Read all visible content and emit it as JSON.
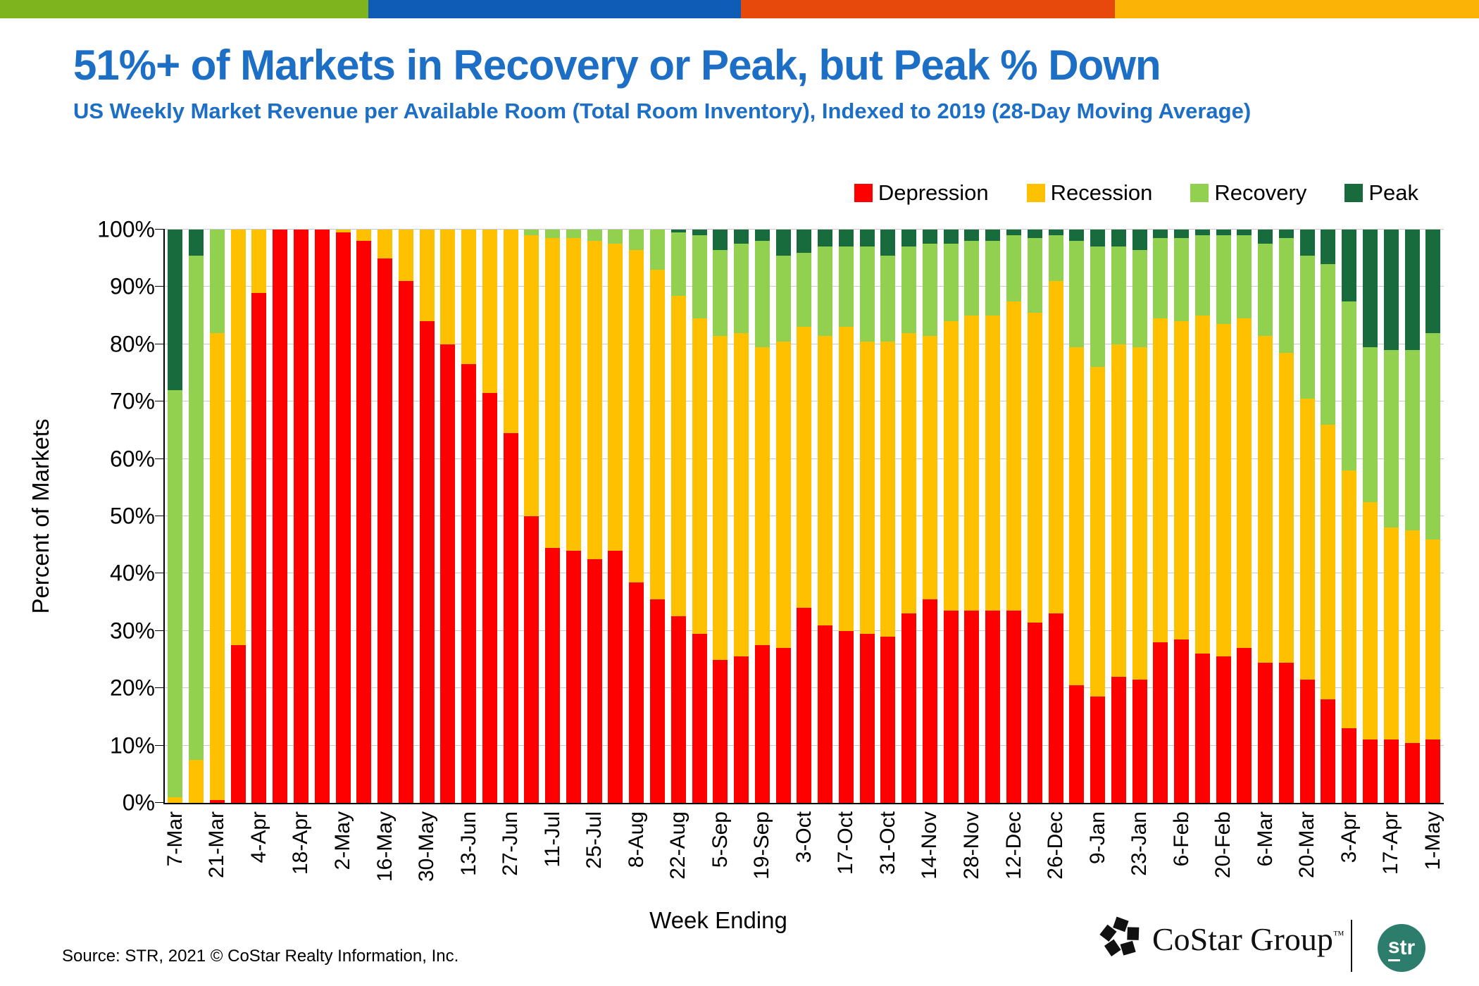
{
  "stripe": {
    "colors": [
      "#7EB41E",
      "#0E5CB5",
      "#E6490B",
      "#FBB305"
    ],
    "widths_pct": [
      24.9,
      25.2,
      25.3,
      24.6
    ]
  },
  "header": {
    "title": "51%+ of Markets in Recovery or Peak, but Peak % Down",
    "subtitle": "US Weekly Market Revenue per Available Room (Total Room Inventory), Indexed to 2019 (28-Day Moving Average)",
    "accent_color": "#1D6EC5"
  },
  "legend": [
    {
      "label": "Depression",
      "color": "#FF0000"
    },
    {
      "label": "Recession",
      "color": "#FFC000"
    },
    {
      "label": "Recovery",
      "color": "#92D050"
    },
    {
      "label": "Peak",
      "color": "#186B3C"
    }
  ],
  "chart_data": {
    "type": "bar",
    "stacked": true,
    "title": "51%+ of Markets in Recovery or Peak, but Peak % Down",
    "xlabel": "Week Ending",
    "ylabel": "Percent of Markets",
    "ylim": [
      0,
      100
    ],
    "yticks": [
      "0%",
      "10%",
      "20%",
      "30%",
      "40%",
      "50%",
      "60%",
      "70%",
      "80%",
      "90%",
      "100%"
    ],
    "grid": true,
    "legend_position": "top-right",
    "label_every": 2,
    "categories": [
      "7-Mar",
      "14-Mar",
      "21-Mar",
      "28-Mar",
      "4-Apr",
      "11-Apr",
      "18-Apr",
      "25-Apr",
      "2-May",
      "9-May",
      "16-May",
      "23-May",
      "30-May",
      "6-Jun",
      "13-Jun",
      "20-Jun",
      "27-Jun",
      "4-Jul",
      "11-Jul",
      "18-Jul",
      "25-Jul",
      "1-Aug",
      "8-Aug",
      "15-Aug",
      "22-Aug",
      "29-Aug",
      "5-Sep",
      "12-Sep",
      "19-Sep",
      "26-Sep",
      "3-Oct",
      "10-Oct",
      "17-Oct",
      "24-Oct",
      "31-Oct",
      "7-Nov",
      "14-Nov",
      "21-Nov",
      "28-Nov",
      "5-Dec",
      "12-Dec",
      "19-Dec",
      "26-Dec",
      "2-Jan",
      "9-Jan",
      "16-Jan",
      "23-Jan",
      "30-Jan",
      "6-Feb",
      "13-Feb",
      "20-Feb",
      "27-Feb",
      "6-Mar",
      "13-Mar",
      "20-Mar",
      "27-Mar",
      "3-Apr",
      "10-Apr",
      "17-Apr",
      "24-Apr",
      "1-May"
    ],
    "series": [
      {
        "name": "Depression",
        "color": "#FF0000",
        "values": [
          0,
          0,
          0.5,
          27.5,
          89,
          100,
          100,
          100,
          99.5,
          98,
          95,
          91,
          84,
          80,
          76.5,
          71.5,
          64.5,
          50,
          44.5,
          44,
          42.5,
          44,
          38.5,
          35.5,
          32.5,
          29.5,
          25,
          25.5,
          27.5,
          27,
          34,
          31,
          30,
          29.5,
          29,
          33,
          35.5,
          33.5,
          33.5,
          33.5,
          33.5,
          31.5,
          33,
          20.5,
          18.5,
          22,
          21.5,
          28,
          28.5,
          26,
          25.5,
          27,
          24.5,
          24.5,
          21.5,
          18,
          13,
          11,
          11,
          10.5,
          11
        ]
      },
      {
        "name": "Recession",
        "color": "#FFC000",
        "values": [
          1,
          7.5,
          81.5,
          72.5,
          11,
          0,
          0,
          0,
          0.5,
          2,
          5,
          9,
          16,
          20,
          23.5,
          28.5,
          35.5,
          49,
          54,
          54.5,
          55.5,
          53.5,
          58,
          57.5,
          56,
          55,
          56.5,
          56.5,
          52,
          53.5,
          49,
          50.5,
          53,
          51,
          51.5,
          49,
          46,
          50.5,
          51.5,
          51.5,
          54,
          54,
          58,
          59,
          57.5,
          58,
          58,
          56.5,
          55.5,
          59,
          58,
          57.5,
          57,
          54,
          49,
          48,
          45,
          41.5,
          37,
          37,
          35
        ]
      },
      {
        "name": "Recovery",
        "color": "#92D050",
        "values": [
          71,
          88,
          18,
          0,
          0,
          0,
          0,
          0,
          0,
          0,
          0,
          0,
          0,
          0,
          0,
          0,
          0,
          1,
          1.5,
          1.5,
          2,
          2.5,
          3.5,
          7,
          11,
          14.5,
          15,
          15.5,
          18.5,
          15,
          13,
          15.5,
          14,
          16.5,
          15,
          15,
          16,
          13.5,
          13,
          13,
          11.5,
          13,
          8,
          18.5,
          21,
          17,
          17,
          14,
          14.5,
          14,
          15.5,
          14.5,
          16,
          20,
          25,
          28,
          29.5,
          27,
          31,
          31.5,
          36
        ]
      },
      {
        "name": "Peak",
        "color": "#186B3C",
        "values": [
          28,
          4.5,
          0,
          0,
          0,
          0,
          0,
          0,
          0,
          0,
          0,
          0,
          0,
          0,
          0,
          0,
          0,
          0,
          0,
          0,
          0,
          0,
          0,
          0,
          0.5,
          1,
          3.5,
          2.5,
          2,
          4.5,
          4,
          3,
          3,
          3,
          4.5,
          3,
          2.5,
          2.5,
          2,
          2,
          1,
          1.5,
          1,
          2,
          3,
          3,
          3.5,
          1.5,
          1.5,
          1,
          1,
          1,
          2.5,
          1.5,
          4.5,
          6,
          12.5,
          20.5,
          21,
          21,
          18
        ]
      }
    ]
  },
  "footer": {
    "source": "Source: STR, 2021 © CoStar Realty Information, Inc.",
    "costar_label": "CoStar Group",
    "costar_tm": "™",
    "str_label_s": "s",
    "str_label_tr": "tr",
    "str_color": "#2C7D6B"
  }
}
